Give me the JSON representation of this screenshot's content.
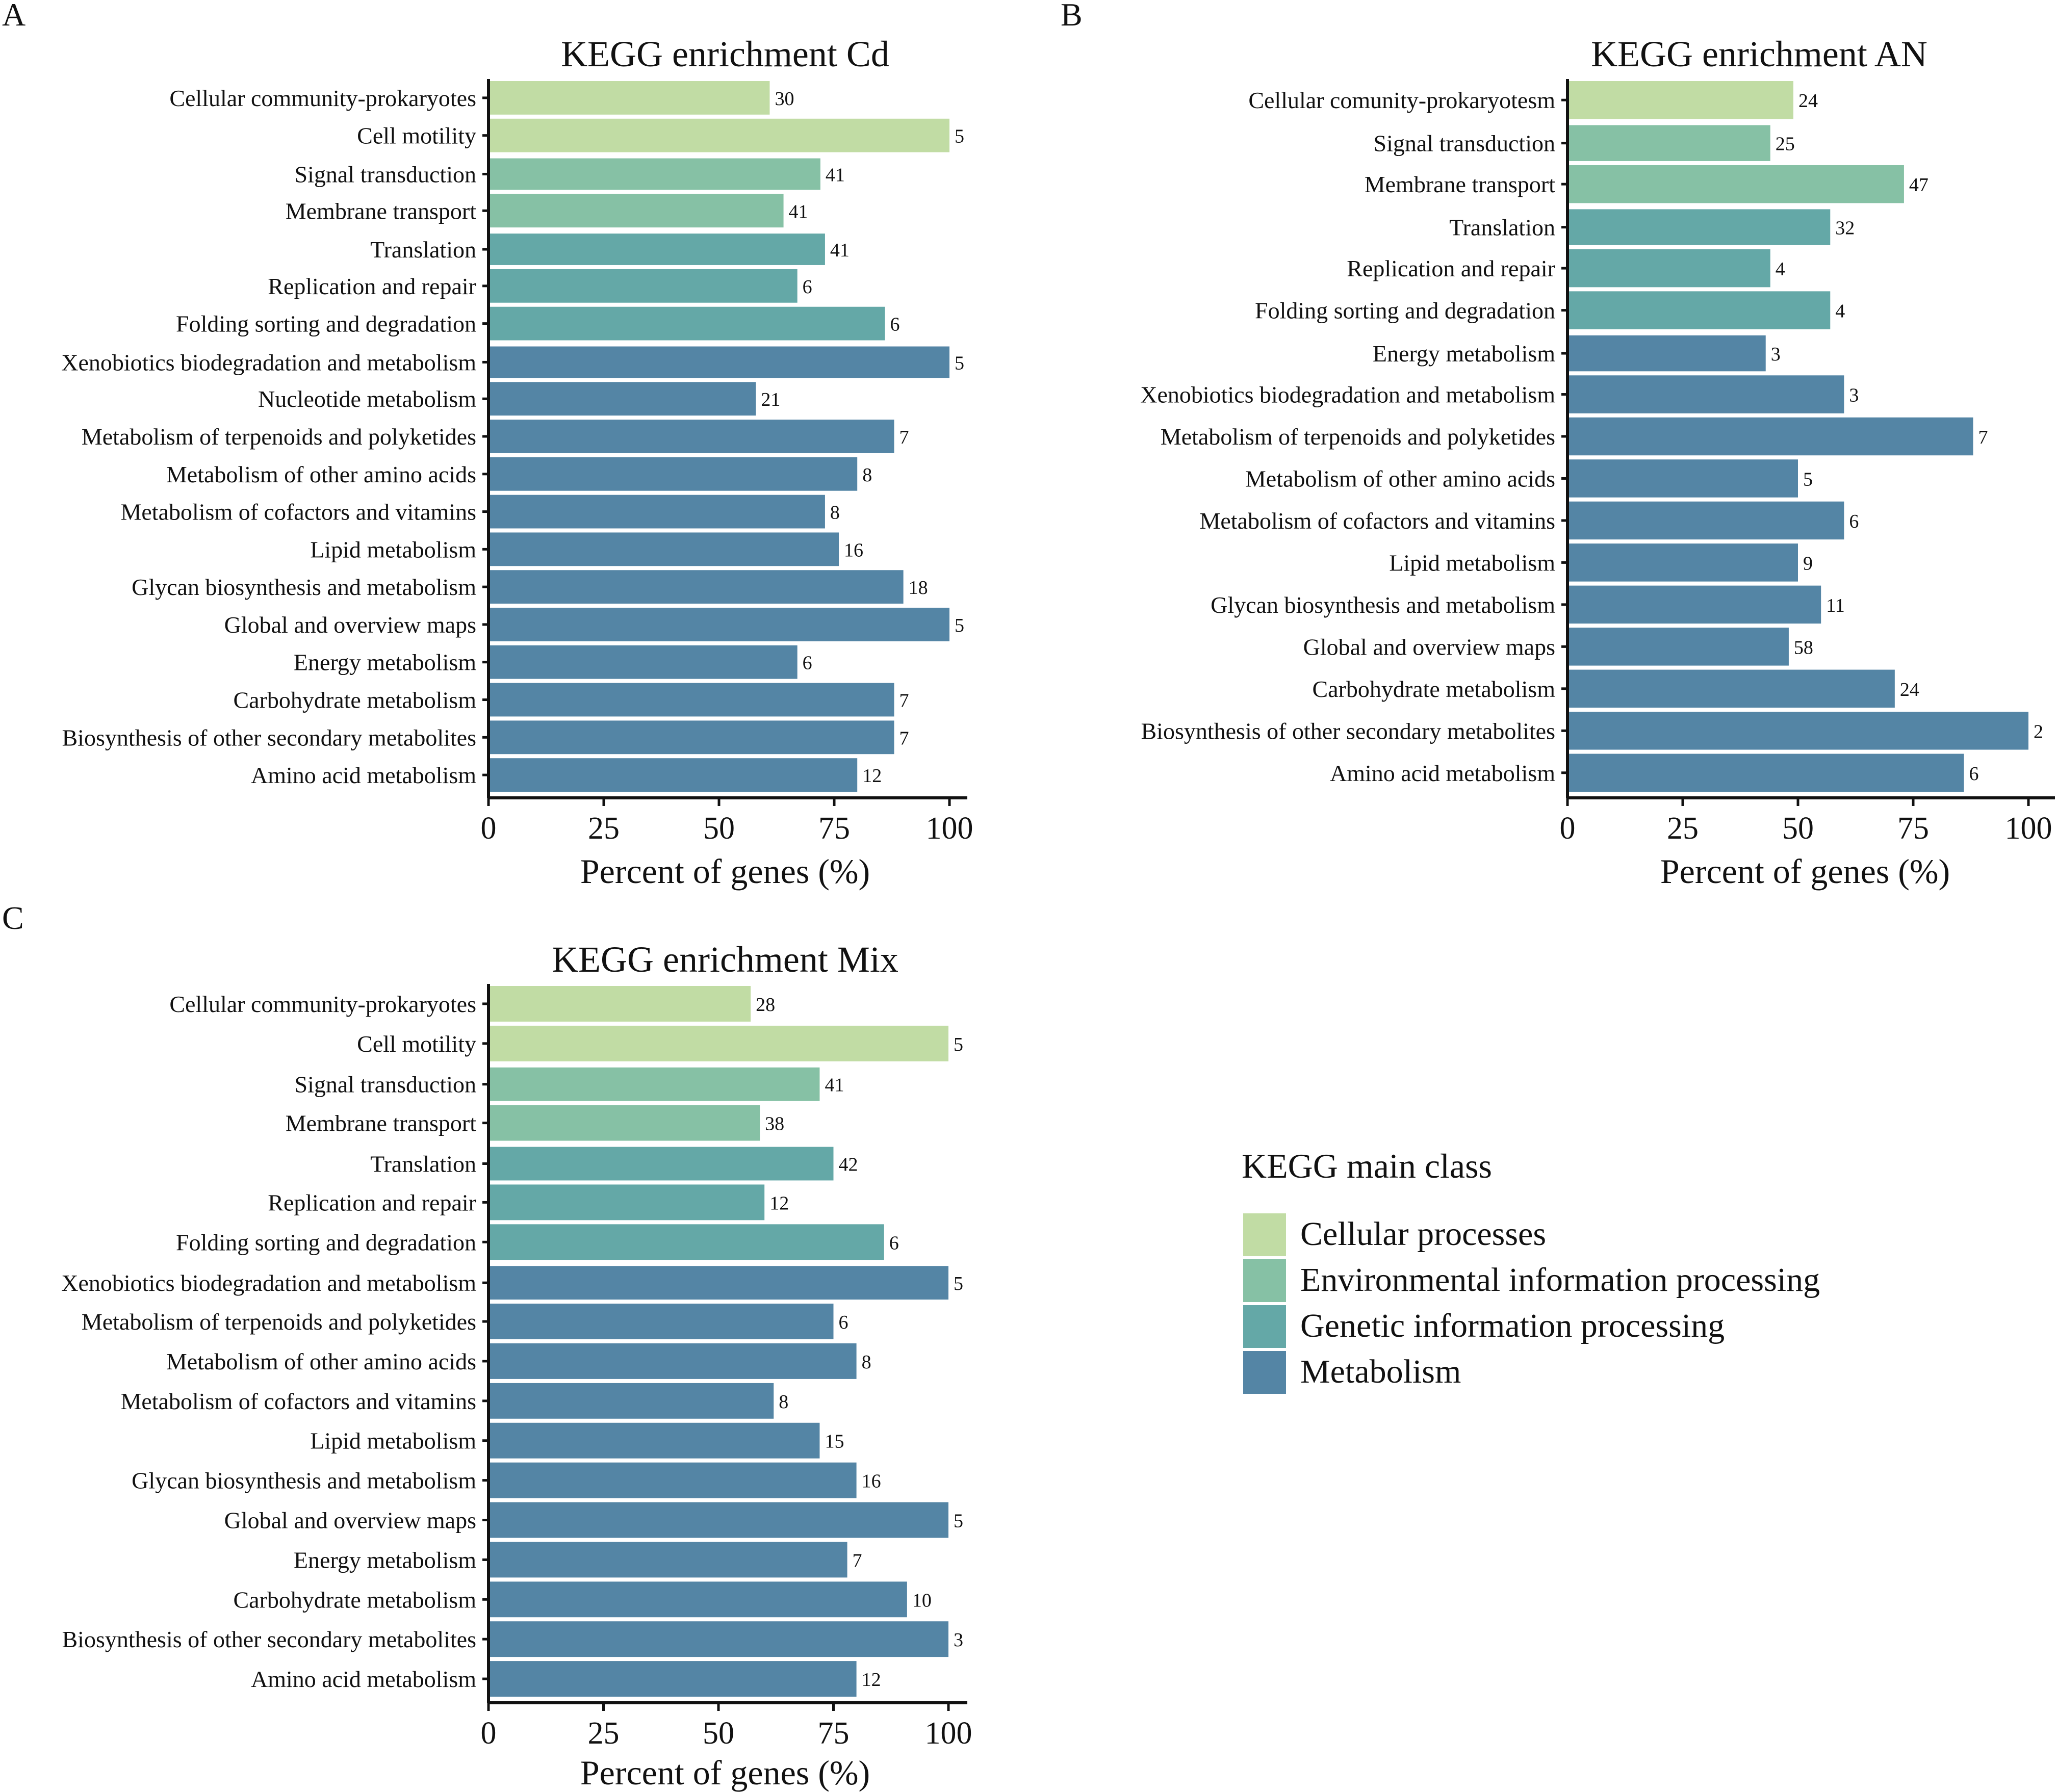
{
  "colors": {
    "Cellular processes": "#c1dca4",
    "Environmental information processing": "#86c1a5",
    "Genetic information processing": "#64a8a7",
    "Metabolism": "#5485a5"
  },
  "legend": {
    "title": "KEGG main class",
    "items": [
      "Cellular processes",
      "Environmental information processing",
      "Genetic information processing",
      "Metabolism"
    ]
  },
  "chart_data": [
    {
      "panel": "A",
      "type": "bar",
      "orientation": "horizontal",
      "title": "KEGG enrichment Cd",
      "xlabel": "Percent of genes (%)",
      "xlim": [
        0,
        100
      ],
      "xticks": [
        "0",
        "25",
        "50",
        "75",
        "100"
      ],
      "bars": [
        {
          "label": "Cellular community-prokaryotes",
          "value": 61,
          "count": "30",
          "class": "Cellular processes"
        },
        {
          "label": "Cell motility",
          "value": 100,
          "count": "5",
          "class": "Cellular processes"
        },
        {
          "label": "Signal transduction",
          "value": 72,
          "count": "41",
          "class": "Environmental information processing"
        },
        {
          "label": "Membrane transport",
          "value": 64,
          "count": "41",
          "class": "Environmental information processing"
        },
        {
          "label": "Translation",
          "value": 73,
          "count": "41",
          "class": "Genetic information processing"
        },
        {
          "label": "Replication and repair",
          "value": 67,
          "count": "6",
          "class": "Genetic information processing"
        },
        {
          "label": "Folding sorting and degradation",
          "value": 86,
          "count": "6",
          "class": "Genetic information processing"
        },
        {
          "label": "Xenobiotics biodegradation and metabolism",
          "value": 100,
          "count": "5",
          "class": "Metabolism"
        },
        {
          "label": "Nucleotide metabolism",
          "value": 58,
          "count": "21",
          "class": "Metabolism"
        },
        {
          "label": "Metabolism of terpenoids and polyketides",
          "value": 88,
          "count": "7",
          "class": "Metabolism"
        },
        {
          "label": "Metabolism of other amino acids",
          "value": 80,
          "count": "8",
          "class": "Metabolism"
        },
        {
          "label": "Metabolism of cofactors and vitamins",
          "value": 73,
          "count": "8",
          "class": "Metabolism"
        },
        {
          "label": "Lipid metabolism",
          "value": 76,
          "count": "16",
          "class": "Metabolism"
        },
        {
          "label": "Glycan biosynthesis and metabolism",
          "value": 90,
          "count": "18",
          "class": "Metabolism"
        },
        {
          "label": "Global and overview maps",
          "value": 100,
          "count": "5",
          "class": "Metabolism"
        },
        {
          "label": "Energy metabolism",
          "value": 67,
          "count": "6",
          "class": "Metabolism"
        },
        {
          "label": "Carbohydrate metabolism",
          "value": 88,
          "count": "7",
          "class": "Metabolism"
        },
        {
          "label": "Biosynthesis of other secondary metabolites",
          "value": 88,
          "count": "7",
          "class": "Metabolism"
        },
        {
          "label": "Amino acid metabolism",
          "value": 80,
          "count": "12",
          "class": "Metabolism"
        }
      ]
    },
    {
      "panel": "B",
      "type": "bar",
      "orientation": "horizontal",
      "title": "KEGG enrichment AN",
      "xlabel": "Percent of genes (%)",
      "xlim": [
        0,
        100
      ],
      "xticks": [
        "0",
        "25",
        "50",
        "75",
        "100"
      ],
      "bars": [
        {
          "label": "Cellular comunity-prokaryotesm",
          "value": 49,
          "count": "24",
          "class": "Cellular processes"
        },
        {
          "label": "Signal transduction",
          "value": 44,
          "count": "25",
          "class": "Environmental information processing"
        },
        {
          "label": "Membrane transport",
          "value": 73,
          "count": "47",
          "class": "Environmental information processing"
        },
        {
          "label": "Translation",
          "value": 57,
          "count": "32",
          "class": "Genetic information processing"
        },
        {
          "label": "Replication and repair",
          "value": 44,
          "count": "4",
          "class": "Genetic information processing"
        },
        {
          "label": "Folding sorting and degradation",
          "value": 57,
          "count": "4",
          "class": "Genetic information processing"
        },
        {
          "label": "Energy metabolism",
          "value": 43,
          "count": "3",
          "class": "Metabolism"
        },
        {
          "label": "Xenobiotics biodegradation and metabolism",
          "value": 60,
          "count": "3",
          "class": "Metabolism"
        },
        {
          "label": "Metabolism of terpenoids and polyketides",
          "value": 88,
          "count": "7",
          "class": "Metabolism"
        },
        {
          "label": "Metabolism of other amino acids",
          "value": 50,
          "count": "5",
          "class": "Metabolism"
        },
        {
          "label": "Metabolism of cofactors and vitamins",
          "value": 60,
          "count": "6",
          "class": "Metabolism"
        },
        {
          "label": "Lipid metabolism",
          "value": 50,
          "count": "9",
          "class": "Metabolism"
        },
        {
          "label": "Glycan biosynthesis and metabolism",
          "value": 55,
          "count": "11",
          "class": "Metabolism"
        },
        {
          "label": "Global and overview maps",
          "value": 48,
          "count": "58",
          "class": "Metabolism"
        },
        {
          "label": "Carbohydrate metabolism",
          "value": 71,
          "count": "24",
          "class": "Metabolism"
        },
        {
          "label": "Biosynthesis of other secondary metabolites",
          "value": 100,
          "count": "2",
          "class": "Metabolism"
        },
        {
          "label": "Amino acid metabolism",
          "value": 86,
          "count": "6",
          "class": "Metabolism"
        }
      ]
    },
    {
      "panel": "C",
      "type": "bar",
      "orientation": "horizontal",
      "title": "KEGG enrichment Mix",
      "xlabel": "Percent of genes (%)",
      "xlim": [
        0,
        100
      ],
      "xticks": [
        "0",
        "25",
        "50",
        "75",
        "100"
      ],
      "bars": [
        {
          "label": "Cellular community-prokaryotes",
          "value": 57,
          "count": "28",
          "class": "Cellular processes"
        },
        {
          "label": "Cell motility",
          "value": 100,
          "count": "5",
          "class": "Cellular processes"
        },
        {
          "label": "Signal transduction",
          "value": 72,
          "count": "41",
          "class": "Environmental information processing"
        },
        {
          "label": "Membrane transport",
          "value": 59,
          "count": "38",
          "class": "Environmental information processing"
        },
        {
          "label": "Translation",
          "value": 75,
          "count": "42",
          "class": "Genetic information processing"
        },
        {
          "label": "Replication and repair",
          "value": 60,
          "count": "12",
          "class": "Genetic information processing"
        },
        {
          "label": "Folding sorting and degradation",
          "value": 86,
          "count": "6",
          "class": "Genetic information processing"
        },
        {
          "label": "Xenobiotics biodegradation and metabolism",
          "value": 100,
          "count": "5",
          "class": "Metabolism"
        },
        {
          "label": "Metabolism of terpenoids and polyketides",
          "value": 75,
          "count": "6",
          "class": "Metabolism"
        },
        {
          "label": "Metabolism of other amino acids",
          "value": 80,
          "count": "8",
          "class": "Metabolism"
        },
        {
          "label": "Metabolism of cofactors and vitamins",
          "value": 62,
          "count": "8",
          "class": "Metabolism"
        },
        {
          "label": "Lipid metabolism",
          "value": 72,
          "count": "15",
          "class": "Metabolism"
        },
        {
          "label": "Glycan biosynthesis and metabolism",
          "value": 80,
          "count": "16",
          "class": "Metabolism"
        },
        {
          "label": "Global and overview maps",
          "value": 100,
          "count": "5",
          "class": "Metabolism"
        },
        {
          "label": "Energy metabolism",
          "value": 78,
          "count": "7",
          "class": "Metabolism"
        },
        {
          "label": "Carbohydrate metabolism",
          "value": 91,
          "count": "10",
          "class": "Metabolism"
        },
        {
          "label": "Biosynthesis of other secondary metabolites",
          "value": 100,
          "count": "3",
          "class": "Metabolism"
        },
        {
          "label": "Amino acid metabolism",
          "value": 80,
          "count": "12",
          "class": "Metabolism"
        }
      ]
    }
  ]
}
